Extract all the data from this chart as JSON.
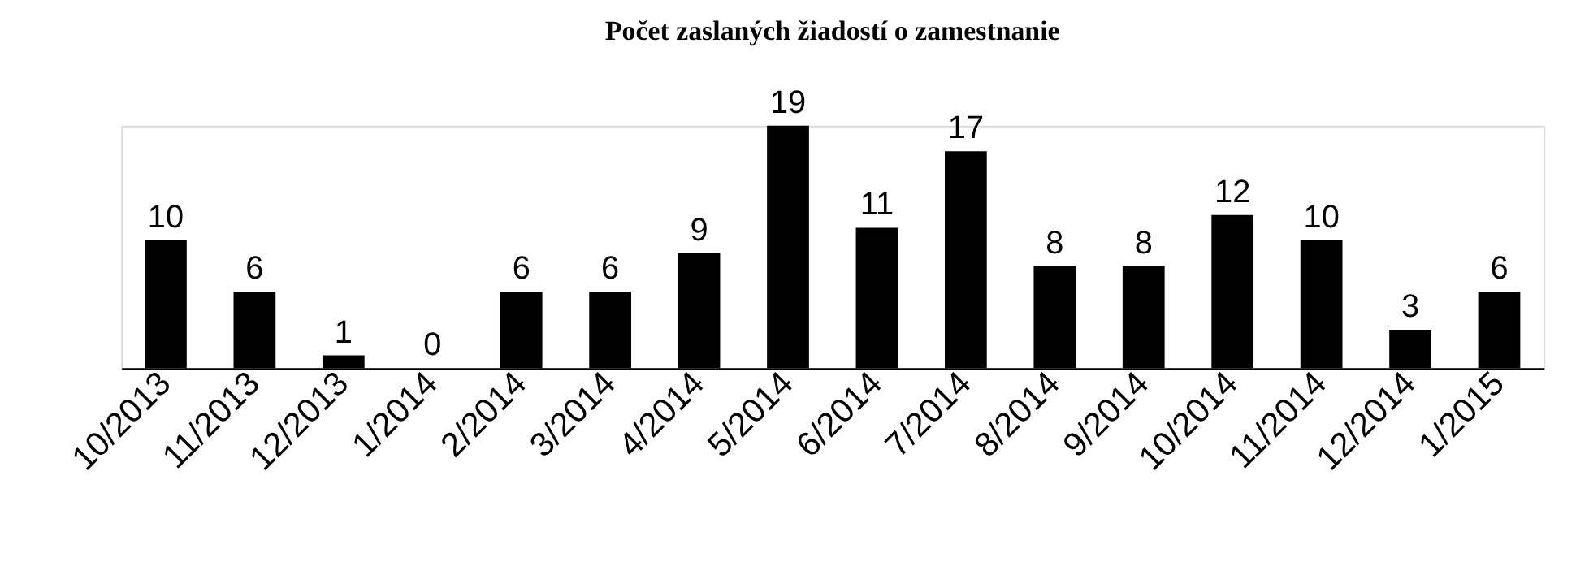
{
  "chart_data": {
    "type": "bar",
    "title": "Počet zaslaných žiadostí o zamestnanie",
    "categories": [
      "10/2013",
      "11/2013",
      "12/2013",
      "1/2014",
      "2/2014",
      "3/2014",
      "4/2014",
      "5/2014",
      "6/2014",
      "7/2014",
      "8/2014",
      "9/2014",
      "10/2014",
      "11/2014",
      "12/2014",
      "1/2015"
    ],
    "values": [
      10,
      6,
      1,
      0,
      6,
      6,
      9,
      19,
      11,
      17,
      8,
      8,
      12,
      10,
      3,
      6
    ],
    "color": "#000000",
    "data_labels": true,
    "tick_labels": "x"
  }
}
